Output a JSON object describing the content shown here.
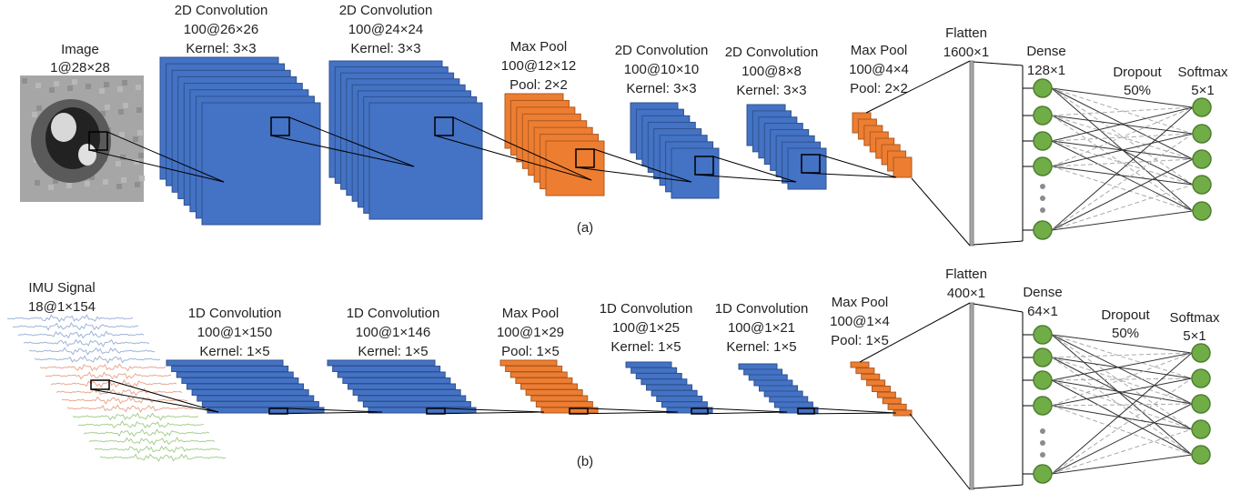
{
  "panel_a": {
    "caption": "(a)",
    "input": {
      "name": "Image",
      "shape": "1@28×28"
    },
    "layers": [
      {
        "name": "2D Convolution",
        "shape": "100@26×26",
        "detail": "Kernel: 3×3"
      },
      {
        "name": "2D Convolution",
        "shape": "100@24×24",
        "detail": "Kernel: 3×3"
      },
      {
        "name": "Max Pool",
        "shape": "100@12×12",
        "detail": "Pool: 2×2"
      },
      {
        "name": "2D Convolution",
        "shape": "100@10×10",
        "detail": "Kernel: 3×3"
      },
      {
        "name": "2D Convolution",
        "shape": "100@8×8",
        "detail": "Kernel: 3×3"
      },
      {
        "name": "Max Pool",
        "shape": "100@4×4",
        "detail": "Pool: 2×2"
      }
    ],
    "flatten": {
      "name": "Flatten",
      "shape": "1600×1"
    },
    "dense": {
      "name": "Dense",
      "shape": "128×1"
    },
    "dropout": {
      "name": "Dropout",
      "rate": "50%"
    },
    "softmax": {
      "name": "Softmax",
      "shape": "5×1"
    }
  },
  "panel_b": {
    "caption": "(b)",
    "input": {
      "name": "IMU Signal",
      "shape": "18@1×154"
    },
    "layers": [
      {
        "name": "1D Convolution",
        "shape": "100@1×150",
        "detail": "Kernel: 1×5"
      },
      {
        "name": "1D Convolution",
        "shape": "100@1×146",
        "detail": "Kernel: 1×5"
      },
      {
        "name": "Max Pool",
        "shape": "100@1×29",
        "detail": "Pool: 1×5"
      },
      {
        "name": "1D Convolution",
        "shape": "100@1×25",
        "detail": "Kernel: 1×5"
      },
      {
        "name": "1D Convolution",
        "shape": "100@1×21",
        "detail": "Kernel: 1×5"
      },
      {
        "name": "Max Pool",
        "shape": "100@1×4",
        "detail": "Pool: 1×5"
      }
    ],
    "flatten": {
      "name": "Flatten",
      "shape": "400×1"
    },
    "dense": {
      "name": "Dense",
      "shape": "64×1"
    },
    "dropout": {
      "name": "Dropout",
      "rate": "50%"
    },
    "softmax": {
      "name": "Softmax",
      "shape": "5×1"
    }
  }
}
